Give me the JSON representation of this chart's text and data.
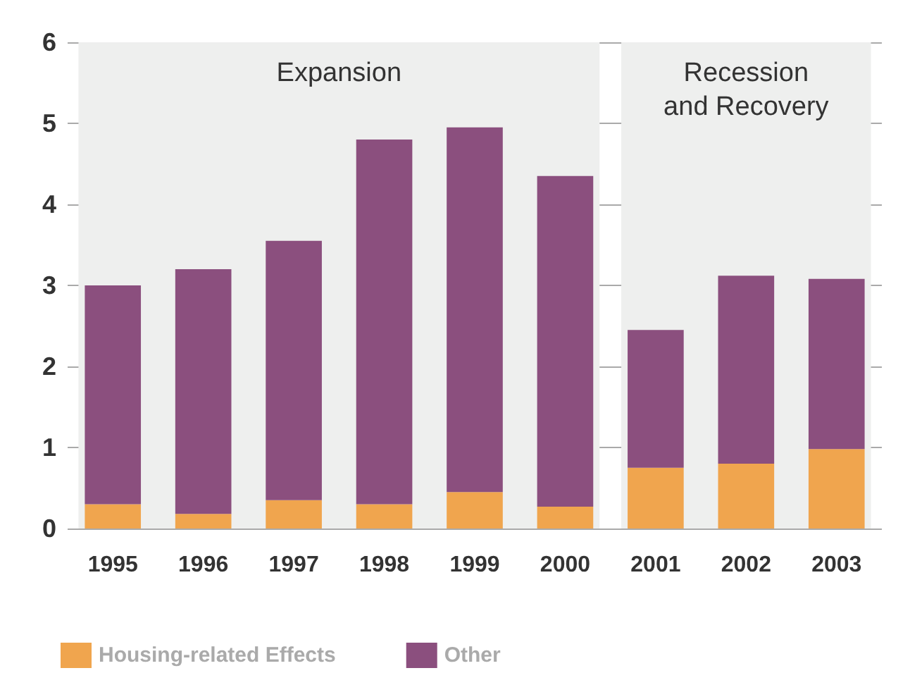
{
  "chart_data": {
    "type": "bar",
    "stacked": true,
    "categories": [
      "1995",
      "1996",
      "1997",
      "1998",
      "1999",
      "2000",
      "2001",
      "2002",
      "2003"
    ],
    "series": [
      {
        "name": "Housing-related Effects",
        "color": "#f0a54e",
        "values": [
          0.3,
          0.18,
          0.35,
          0.3,
          0.45,
          0.27,
          0.75,
          0.8,
          0.98
        ]
      },
      {
        "name": "Other",
        "color": "#8b4f7e",
        "values": [
          2.7,
          3.02,
          3.2,
          4.5,
          4.5,
          4.08,
          1.7,
          2.32,
          2.1
        ]
      }
    ],
    "ylim": [
      0,
      6
    ],
    "yticks": [
      0,
      1,
      2,
      3,
      4,
      5,
      6
    ],
    "grid": "y",
    "legend": "bottom left",
    "bands": [
      {
        "axis": "x",
        "from": "1995",
        "to": "2000",
        "label": "Expansion",
        "color": "#eeefee"
      },
      {
        "axis": "x",
        "from": "2001",
        "to": "2003",
        "label": "Recession\nand Recovery",
        "color": "#eeefee"
      }
    ]
  }
}
